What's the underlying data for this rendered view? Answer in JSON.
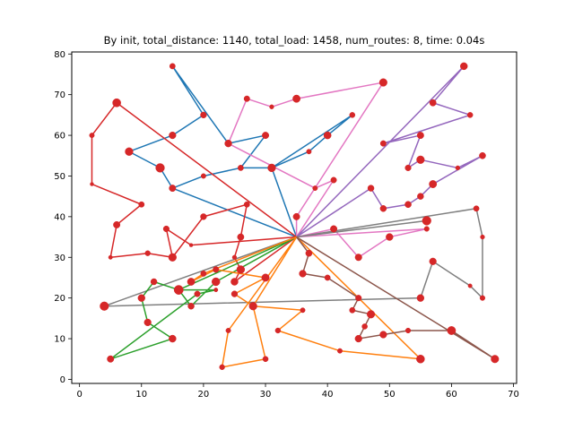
{
  "chart_data": {
    "type": "line",
    "title": "By init, total_distance: 1140, total_load: 1458, num_routes: 8, time: 0.04s",
    "xlabel": "",
    "ylabel": "",
    "xlim": [
      -1.25,
      70.5
    ],
    "ylim": [
      -1.0,
      80.5
    ],
    "xticks": [
      0,
      10,
      20,
      30,
      40,
      50,
      60,
      70
    ],
    "yticks": [
      0,
      10,
      20,
      30,
      40,
      50,
      60,
      70,
      80
    ],
    "grid": false,
    "depot": [
      35,
      35
    ],
    "point_color": "#d62728",
    "customers": [
      {
        "x": 15,
        "y": 77,
        "demand": 9
      },
      {
        "x": 20,
        "y": 65,
        "demand": 12
      },
      {
        "x": 15,
        "y": 60,
        "demand": 18
      },
      {
        "x": 24,
        "y": 58,
        "demand": 19
      },
      {
        "x": 8,
        "y": 56,
        "demand": 27
      },
      {
        "x": 13,
        "y": 52,
        "demand": 36
      },
      {
        "x": 15,
        "y": 47,
        "demand": 16
      },
      {
        "x": 20,
        "y": 50,
        "demand": 5
      },
      {
        "x": 26,
        "y": 52,
        "demand": 9
      },
      {
        "x": 31,
        "y": 52,
        "demand": 27
      },
      {
        "x": 37,
        "y": 56,
        "demand": 5
      },
      {
        "x": 40,
        "y": 60,
        "demand": 21
      },
      {
        "x": 44,
        "y": 65,
        "demand": 8
      },
      {
        "x": 27,
        "y": 69,
        "demand": 10
      },
      {
        "x": 31,
        "y": 67,
        "demand": 3
      },
      {
        "x": 35,
        "y": 69,
        "demand": 23
      },
      {
        "x": 49,
        "y": 73,
        "demand": 25
      },
      {
        "x": 30,
        "y": 60,
        "demand": 16
      },
      {
        "x": 38,
        "y": 47,
        "demand": 5
      },
      {
        "x": 41,
        "y": 49,
        "demand": 10
      },
      {
        "x": 35,
        "y": 40,
        "demand": 16
      },
      {
        "x": 41,
        "y": 37,
        "demand": 16
      },
      {
        "x": 45,
        "y": 30,
        "demand": 17
      },
      {
        "x": 50,
        "y": 35,
        "demand": 19
      },
      {
        "x": 56,
        "y": 37,
        "demand": 6
      },
      {
        "x": 62,
        "y": 77,
        "demand": 20
      },
      {
        "x": 57,
        "y": 68,
        "demand": 15
      },
      {
        "x": 63,
        "y": 65,
        "demand": 8
      },
      {
        "x": 49,
        "y": 58,
        "demand": 10
      },
      {
        "x": 55,
        "y": 60,
        "demand": 16
      },
      {
        "x": 53,
        "y": 52,
        "demand": 11
      },
      {
        "x": 55,
        "y": 54,
        "demand": 26
      },
      {
        "x": 61,
        "y": 52,
        "demand": 3
      },
      {
        "x": 65,
        "y": 55,
        "demand": 14
      },
      {
        "x": 57,
        "y": 48,
        "demand": 23
      },
      {
        "x": 55,
        "y": 45,
        "demand": 13
      },
      {
        "x": 53,
        "y": 43,
        "demand": 14
      },
      {
        "x": 49,
        "y": 42,
        "demand": 13
      },
      {
        "x": 47,
        "y": 47,
        "demand": 13
      },
      {
        "x": 56,
        "y": 39,
        "demand": 36
      },
      {
        "x": 64,
        "y": 42,
        "demand": 9
      },
      {
        "x": 65,
        "y": 35,
        "demand": 3
      },
      {
        "x": 65,
        "y": 20,
        "demand": 6
      },
      {
        "x": 63,
        "y": 23,
        "demand": 2
      },
      {
        "x": 57,
        "y": 29,
        "demand": 18
      },
      {
        "x": 55,
        "y": 20,
        "demand": 19
      },
      {
        "x": 4,
        "y": 18,
        "demand": 35
      },
      {
        "x": 6,
        "y": 68,
        "demand": 30
      },
      {
        "x": 2,
        "y": 60,
        "demand": 5
      },
      {
        "x": 2,
        "y": 48,
        "demand": 1
      },
      {
        "x": 10,
        "y": 43,
        "demand": 9
      },
      {
        "x": 6,
        "y": 38,
        "demand": 16
      },
      {
        "x": 5,
        "y": 30,
        "demand": 2
      },
      {
        "x": 11,
        "y": 31,
        "demand": 7
      },
      {
        "x": 15,
        "y": 30,
        "demand": 26
      },
      {
        "x": 20,
        "y": 40,
        "demand": 12
      },
      {
        "x": 27,
        "y": 43,
        "demand": 9
      },
      {
        "x": 26,
        "y": 35,
        "demand": 15
      },
      {
        "x": 25,
        "y": 30,
        "demand": 3
      },
      {
        "x": 26,
        "y": 27,
        "demand": 27
      },
      {
        "x": 25,
        "y": 24,
        "demand": 20
      },
      {
        "x": 18,
        "y": 33,
        "demand": 1
      },
      {
        "x": 14,
        "y": 37,
        "demand": 11
      },
      {
        "x": 12,
        "y": 24,
        "demand": 13
      },
      {
        "x": 19,
        "y": 21,
        "demand": 10
      },
      {
        "x": 22,
        "y": 22,
        "demand": 2
      },
      {
        "x": 16,
        "y": 22,
        "demand": 41
      },
      {
        "x": 10,
        "y": 20,
        "demand": 19
      },
      {
        "x": 11,
        "y": 14,
        "demand": 18
      },
      {
        "x": 15,
        "y": 10,
        "demand": 20
      },
      {
        "x": 5,
        "y": 5,
        "demand": 16
      },
      {
        "x": 22,
        "y": 24,
        "demand": 28
      },
      {
        "x": 18,
        "y": 18,
        "demand": 13
      },
      {
        "x": 20,
        "y": 26,
        "demand": 9
      },
      {
        "x": 18,
        "y": 24,
        "demand": 22
      },
      {
        "x": 22,
        "y": 27,
        "demand": 11
      },
      {
        "x": 30,
        "y": 25,
        "demand": 23
      },
      {
        "x": 25,
        "y": 21,
        "demand": 12
      },
      {
        "x": 28,
        "y": 18,
        "demand": 26
      },
      {
        "x": 36,
        "y": 17,
        "demand": 5
      },
      {
        "x": 32,
        "y": 12,
        "demand": 7
      },
      {
        "x": 42,
        "y": 7,
        "demand": 5
      },
      {
        "x": 55,
        "y": 5,
        "demand": 29
      },
      {
        "x": 24,
        "y": 12,
        "demand": 5
      },
      {
        "x": 23,
        "y": 3,
        "demand": 7
      },
      {
        "x": 30,
        "y": 5,
        "demand": 8
      },
      {
        "x": 37,
        "y": 31,
        "demand": 14
      },
      {
        "x": 36,
        "y": 26,
        "demand": 18
      },
      {
        "x": 40,
        "y": 25,
        "demand": 9
      },
      {
        "x": 45,
        "y": 20,
        "demand": 11
      },
      {
        "x": 44,
        "y": 17,
        "demand": 9
      },
      {
        "x": 47,
        "y": 16,
        "demand": 25
      },
      {
        "x": 46,
        "y": 13,
        "demand": 8
      },
      {
        "x": 45,
        "y": 10,
        "demand": 18
      },
      {
        "x": 49,
        "y": 11,
        "demand": 18
      },
      {
        "x": 53,
        "y": 12,
        "demand": 6
      },
      {
        "x": 60,
        "y": 12,
        "demand": 31
      },
      {
        "x": 67,
        "y": 5,
        "demand": 25
      }
    ],
    "series": [
      {
        "color": "#1f77b4",
        "points": [
          [
            35,
            35
          ],
          [
            15,
            47
          ],
          [
            13,
            52
          ],
          [
            8,
            56
          ],
          [
            15,
            60
          ],
          [
            20,
            65
          ],
          [
            15,
            77
          ],
          [
            24,
            58
          ],
          [
            30,
            60
          ],
          [
            26,
            52
          ],
          [
            20,
            50
          ],
          [
            15,
            47
          ]
        ],
        "return_order": [
          [
            35,
            35
          ],
          [
            31,
            52
          ],
          [
            37,
            56
          ],
          [
            40,
            60
          ],
          [
            44,
            65
          ],
          [
            31,
            52
          ],
          [
            26,
            52
          ]
        ]
      },
      {
        "color": "#e377c2",
        "points": [
          [
            35,
            35
          ],
          [
            41,
            49
          ],
          [
            38,
            47
          ],
          [
            24,
            58
          ],
          [
            27,
            69
          ],
          [
            31,
            67
          ],
          [
            35,
            69
          ],
          [
            49,
            73
          ],
          [
            35,
            40
          ],
          [
            35,
            35
          ],
          [
            41,
            37
          ],
          [
            45,
            30
          ],
          [
            50,
            35
          ],
          [
            56,
            37
          ],
          [
            35,
            35
          ]
        ]
      },
      {
        "color": "#9467bd",
        "points": [
          [
            35,
            35
          ],
          [
            62,
            77
          ],
          [
            57,
            68
          ],
          [
            63,
            65
          ],
          [
            49,
            58
          ],
          [
            55,
            60
          ],
          [
            53,
            52
          ],
          [
            55,
            54
          ],
          [
            61,
            52
          ],
          [
            65,
            55
          ],
          [
            57,
            48
          ],
          [
            55,
            45
          ],
          [
            53,
            43
          ],
          [
            49,
            42
          ],
          [
            47,
            47
          ],
          [
            35,
            35
          ]
        ]
      },
      {
        "color": "#7f7f7f",
        "points": [
          [
            35,
            35
          ],
          [
            56,
            39
          ],
          [
            35,
            35
          ],
          [
            64,
            42
          ],
          [
            65,
            35
          ],
          [
            65,
            20
          ],
          [
            63,
            23
          ],
          [
            57,
            29
          ],
          [
            55,
            20
          ],
          [
            4,
            18
          ],
          [
            35,
            35
          ]
        ]
      },
      {
        "color": "#d62728",
        "points": [
          [
            35,
            35
          ],
          [
            6,
            68
          ],
          [
            2,
            60
          ],
          [
            2,
            48
          ],
          [
            10,
            43
          ],
          [
            6,
            38
          ],
          [
            5,
            30
          ],
          [
            11,
            31
          ],
          [
            15,
            30
          ],
          [
            20,
            40
          ],
          [
            27,
            43
          ],
          [
            26,
            35
          ],
          [
            25,
            30
          ],
          [
            26,
            27
          ],
          [
            25,
            24
          ],
          [
            35,
            35
          ],
          [
            18,
            33
          ],
          [
            14,
            37
          ],
          [
            15,
            30
          ]
        ]
      },
      {
        "color": "#2ca02c",
        "points": [
          [
            35,
            35
          ],
          [
            22,
            24
          ],
          [
            18,
            18
          ],
          [
            16,
            22
          ],
          [
            12,
            24
          ],
          [
            10,
            20
          ],
          [
            11,
            14
          ],
          [
            15,
            10
          ],
          [
            5,
            5
          ],
          [
            19,
            21
          ],
          [
            22,
            22
          ],
          [
            16,
            22
          ],
          [
            35,
            35
          ]
        ]
      },
      {
        "color": "#ff7f0e",
        "points": [
          [
            35,
            35
          ],
          [
            20,
            26
          ],
          [
            18,
            24
          ],
          [
            22,
            27
          ],
          [
            30,
            25
          ],
          [
            25,
            21
          ],
          [
            28,
            18
          ],
          [
            36,
            17
          ],
          [
            32,
            12
          ],
          [
            42,
            7
          ],
          [
            55,
            5
          ],
          [
            35,
            35
          ],
          [
            24,
            12
          ],
          [
            23,
            3
          ],
          [
            30,
            5
          ],
          [
            28,
            18
          ],
          [
            35,
            35
          ]
        ]
      },
      {
        "color": "#8c564b",
        "points": [
          [
            35,
            35
          ],
          [
            37,
            31
          ],
          [
            36,
            26
          ],
          [
            40,
            25
          ],
          [
            45,
            20
          ],
          [
            44,
            17
          ],
          [
            47,
            16
          ],
          [
            46,
            13
          ],
          [
            45,
            10
          ],
          [
            49,
            11
          ],
          [
            53,
            12
          ],
          [
            60,
            12
          ],
          [
            67,
            5
          ],
          [
            35,
            35
          ]
        ]
      }
    ]
  }
}
